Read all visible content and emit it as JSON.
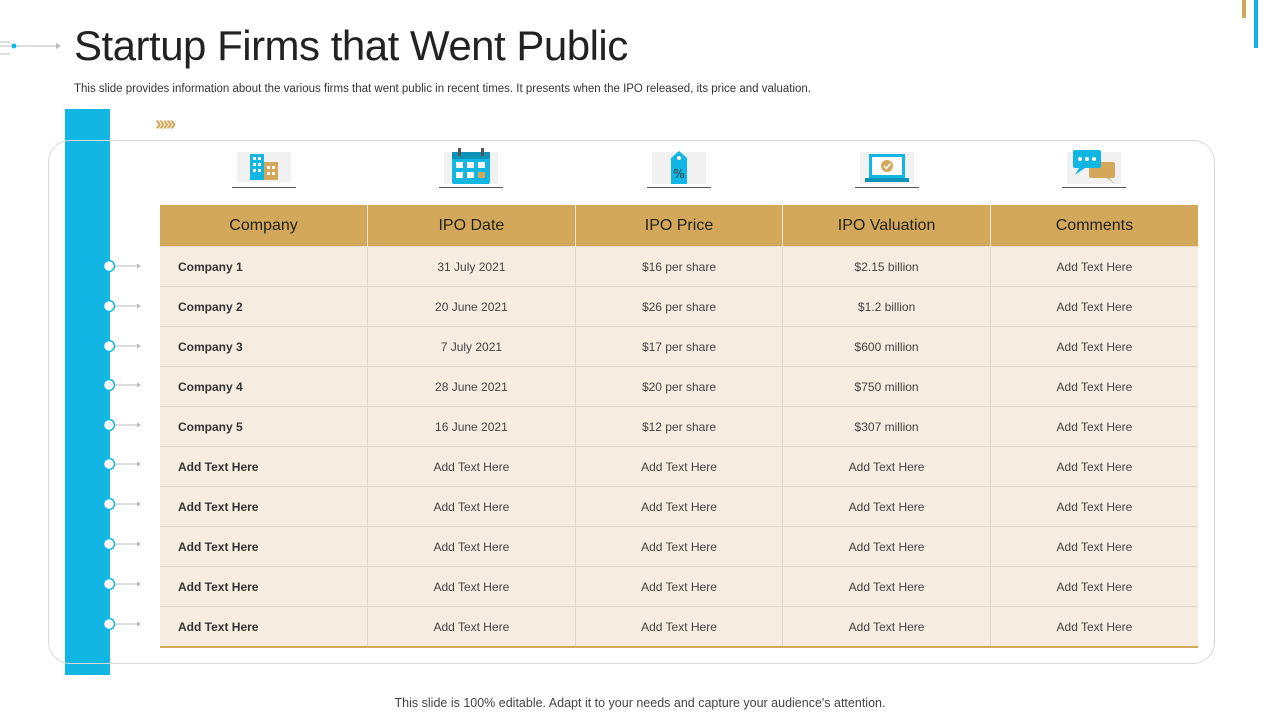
{
  "slide": {
    "title": "Startup Firms that Went Public",
    "subtitle": "This slide provides information about the various firms that went public in recent times. It presents when the IPO released, its price and valuation.",
    "footer": "This slide is 100% editable. Adapt it to your needs and capture your audience's attention."
  },
  "colors": {
    "accent_blue": "#12b6e3",
    "accent_gold": "#d4a85a",
    "row_bg": "#f6ece0"
  },
  "icons": [
    "building-icon",
    "calendar-icon",
    "price-tag-icon",
    "laptop-valuation-icon",
    "chat-comments-icon"
  ],
  "table": {
    "headers": [
      "Company",
      "IPO Date",
      "IPO Price",
      "IPO Valuation",
      "Comments"
    ],
    "rows": [
      [
        "Company 1",
        "31 July 2021",
        "$16 per share",
        "$2.15 billion",
        "Add Text Here"
      ],
      [
        "Company 2",
        "20 June 2021",
        "$26 per share",
        "$1.2 billion",
        "Add Text Here"
      ],
      [
        "Company 3",
        "7 July 2021",
        "$17 per share",
        "$600 million",
        "Add Text Here"
      ],
      [
        "Company 4",
        "28 June 2021",
        "$20 per share",
        "$750 million",
        "Add Text Here"
      ],
      [
        "Company 5",
        "16 June 2021",
        "$12 per share",
        "$307 million",
        "Add Text Here"
      ],
      [
        "Add Text Here",
        "Add Text Here",
        "Add Text Here",
        "Add Text Here",
        "Add Text Here"
      ],
      [
        "Add Text Here",
        "Add Text Here",
        "Add Text Here",
        "Add Text Here",
        "Add Text Here"
      ],
      [
        "Add Text Here",
        "Add Text Here",
        "Add Text Here",
        "Add Text Here",
        "Add Text Here"
      ],
      [
        "Add Text Here",
        "Add Text Here",
        "Add Text Here",
        "Add Text Here",
        "Add Text Here"
      ],
      [
        "Add Text Here",
        "Add Text Here",
        "Add Text Here",
        "Add Text Here",
        "Add Text Here"
      ]
    ]
  }
}
